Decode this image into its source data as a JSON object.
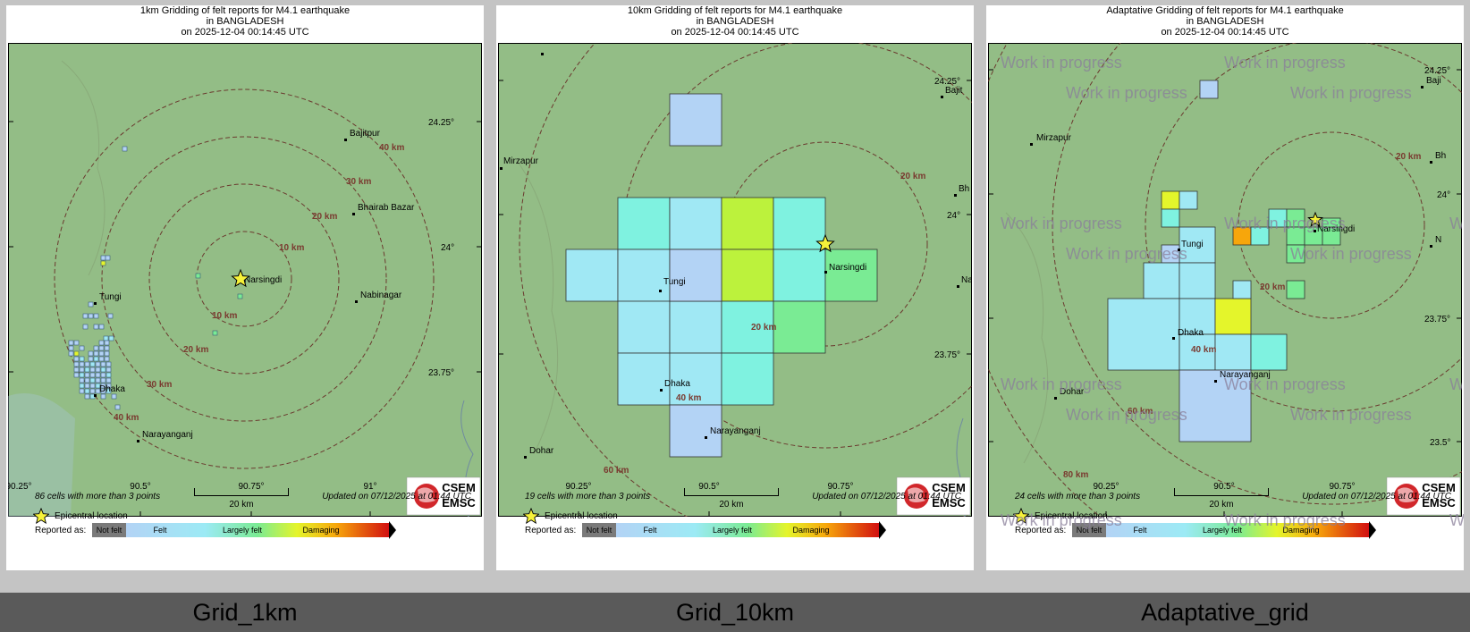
{
  "panels": [
    {
      "title": [
        "1km Gridding of felt reports for M4.1 earthquake",
        "in BANGLADESH",
        "on  2025-12-04 00:14:45 UTC"
      ],
      "label": "Grid_1km",
      "cells_text": "86 cells with more than 3 points",
      "places": [
        "Bajitpur",
        "Bhairab Bazar",
        "Narsingdi",
        "Nabinagar",
        "Tungi",
        "Dhaka",
        "Narayanganj"
      ],
      "rings": [
        "10 km",
        "20 km",
        "30 km",
        "40 km"
      ],
      "lat_labels": [
        "24.25°",
        "24°",
        "23.75°"
      ],
      "lon_labels": [
        "90.25°",
        "90.5°",
        "90.75°",
        "91°"
      ]
    },
    {
      "title": [
        "10km Gridding of felt reports for M4.1 earthquake",
        "in BANGLADESH",
        "on  2025-12-04 00:14:45 UTC"
      ],
      "label": "Grid_10km",
      "cells_text": "19 cells with more than 3 points",
      "places": [
        "Mirzapur",
        "Tungi",
        "Narsingdi",
        "Dhaka",
        "Narayanganj",
        "Dohar",
        "Bajit",
        "Bh",
        "Na"
      ],
      "rings": [
        "20 km",
        "40 km",
        "60 km"
      ],
      "lat_labels": [
        "24.25°",
        "24°",
        "23.75°"
      ],
      "lon_labels": [
        "90.25°",
        "90.5°",
        "90.75°"
      ]
    },
    {
      "title": [
        "Adaptative Gridding of felt reports for M4.1 earthquake",
        "in BANGLADESH",
        "on  2025-12-04 00:14:45 UTC"
      ],
      "label": "Adaptative_grid",
      "cells_text": "24 cells with more than 3 points",
      "places": [
        "Mirzapur",
        "Tungi",
        "Narsingdi",
        "Dhaka",
        "Narayanganj",
        "Dohar",
        "Baji",
        "Bh",
        "N"
      ],
      "rings": [
        "20 km",
        "40 km",
        "60 km",
        "80 km"
      ],
      "lat_labels": [
        "24.25°",
        "24°",
        "23.75°",
        "23.5°"
      ],
      "lon_labels": [
        "90.25°",
        "90.5°",
        "90.75°"
      ],
      "watermark": "Work in progress"
    }
  ],
  "common": {
    "updated": "Updated on 07/12/2025 at 01:44 UTC",
    "scale_label": "20 km",
    "epicentral_label": "Epicentral location",
    "reported_as": "Reported as:",
    "legend": [
      "Not felt",
      "Felt",
      "Largely felt",
      "Damaging"
    ],
    "logo_top": "CSEM",
    "logo_bottom": "EMSC"
  },
  "colors": {
    "map_green": "#93bd86",
    "water": "#a9c7d9",
    "ring": "#6b3a2f",
    "grid_felt_light": "#b3d3f5",
    "grid_felt": "#a0e8f4",
    "grid_cyan": "#7ff2e0",
    "grid_green": "#7aeb94",
    "grid_yellowgreen": "#bcf23c",
    "grid_yellow": "#e4f52b",
    "grid_orange": "#f7a60b",
    "logo_red": "#d1272b"
  }
}
